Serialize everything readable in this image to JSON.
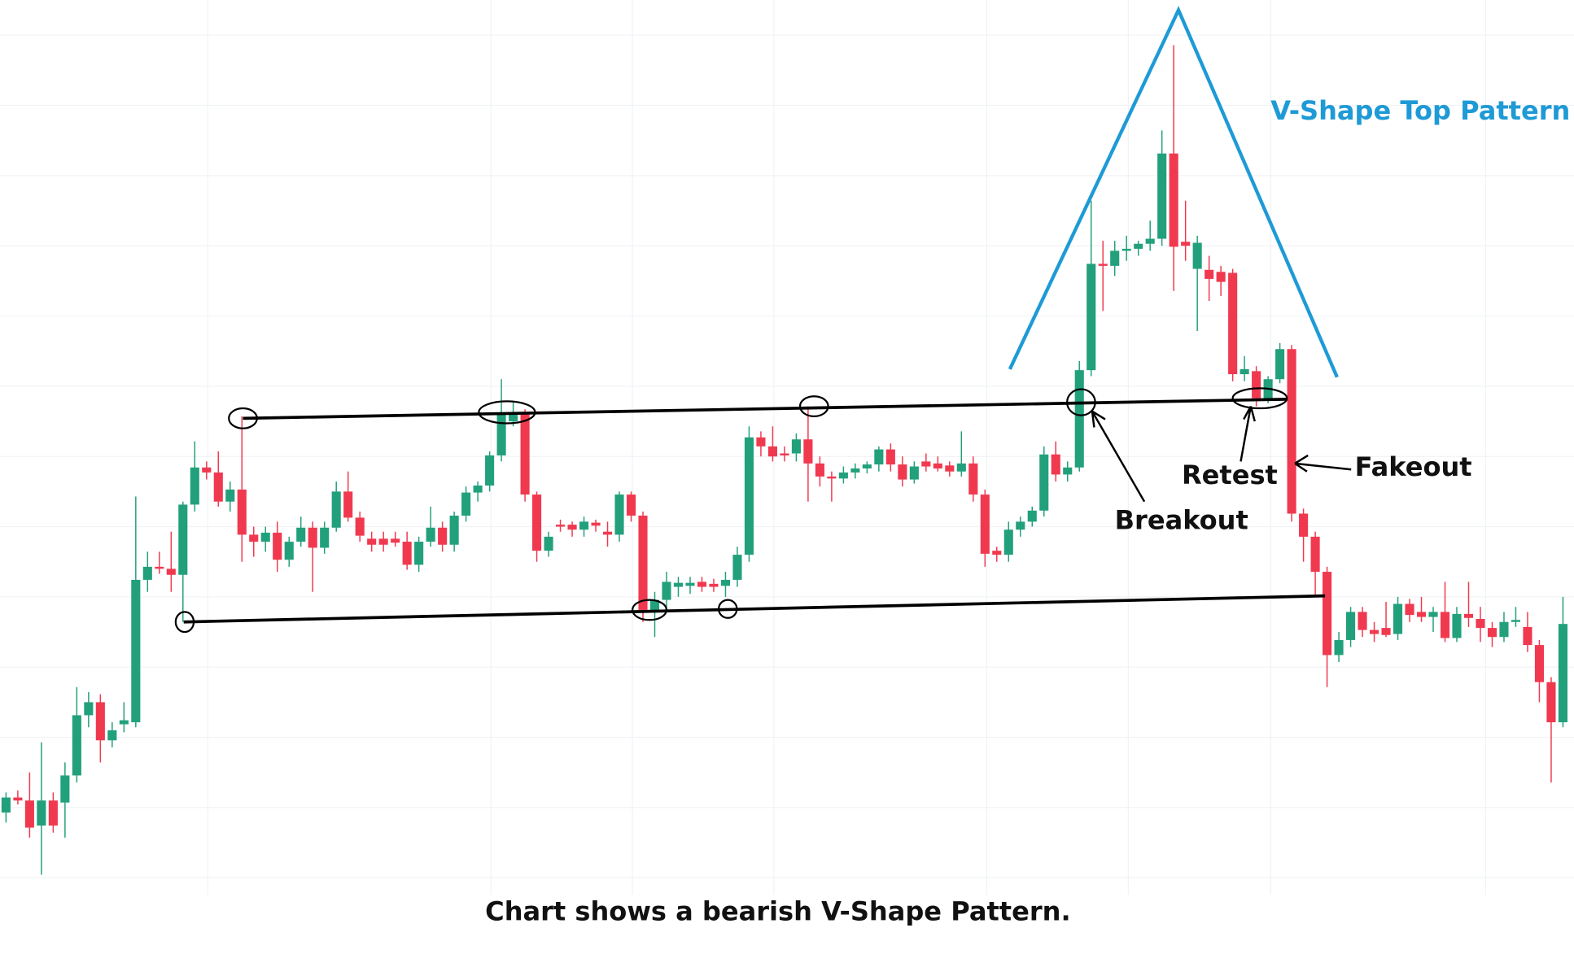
{
  "chart_data": {
    "type": "candlestick",
    "title": "V-Shape Top Pattern",
    "annotations": [
      "Breakout",
      "Retest",
      "Fakeout"
    ],
    "caption": "Chart shows a bearish V-Shape Pattern.",
    "up_color": "#22a07c",
    "down_color": "#f0394f",
    "title_color": "#1e9ad6",
    "ylim": [
      0,
      88
    ],
    "ohlc": [
      [
        7.0,
        9.0,
        6.0,
        8.5
      ],
      [
        8.5,
        9.2,
        7.8,
        8.2
      ],
      [
        8.2,
        11.0,
        4.5,
        5.5
      ],
      [
        5.7,
        14.0,
        0.8,
        8.2
      ],
      [
        8.2,
        9.0,
        5.0,
        5.7
      ],
      [
        8.0,
        12.0,
        4.5,
        10.7
      ],
      [
        10.7,
        19.5,
        10.0,
        16.7
      ],
      [
        16.7,
        19.0,
        15.5,
        18.0
      ],
      [
        18.0,
        18.8,
        12.0,
        14.2
      ],
      [
        14.2,
        16.0,
        13.5,
        15.2
      ],
      [
        15.8,
        18.0,
        15.0,
        16.2
      ],
      [
        16.0,
        38.5,
        15.5,
        30.2
      ],
      [
        30.2,
        33.0,
        29.0,
        31.5
      ],
      [
        31.5,
        33.0,
        30.8,
        31.3
      ],
      [
        31.3,
        35.0,
        29.0,
        30.7
      ],
      [
        30.7,
        38.0,
        26.0,
        37.7
      ],
      [
        37.7,
        44.0,
        37.0,
        41.4
      ],
      [
        41.4,
        42.0,
        40.2,
        40.9
      ],
      [
        40.9,
        43.0,
        37.5,
        38.0
      ],
      [
        38.0,
        40.0,
        37.0,
        39.2
      ],
      [
        39.2,
        46.5,
        32.0,
        34.7
      ],
      [
        34.7,
        35.5,
        32.5,
        34.0
      ],
      [
        34.0,
        35.5,
        33.0,
        34.9
      ],
      [
        34.9,
        36.0,
        31.0,
        32.2
      ],
      [
        32.2,
        34.5,
        31.5,
        34.0
      ],
      [
        34.0,
        36.5,
        33.5,
        35.4
      ],
      [
        35.4,
        36.0,
        29.0,
        33.4
      ],
      [
        33.4,
        36.0,
        32.8,
        35.4
      ],
      [
        35.4,
        40.0,
        35.0,
        39.0
      ],
      [
        39.0,
        41.0,
        36.0,
        36.4
      ],
      [
        36.4,
        37.0,
        34.0,
        34.6
      ],
      [
        34.3,
        35.0,
        33.0,
        33.7
      ],
      [
        34.3,
        35.0,
        33.0,
        33.7
      ],
      [
        34.3,
        35.0,
        33.5,
        33.9
      ],
      [
        34.0,
        35.0,
        31.2,
        31.7
      ],
      [
        31.7,
        34.5,
        31.0,
        34.0
      ],
      [
        34.0,
        37.5,
        33.5,
        35.4
      ],
      [
        35.4,
        36.0,
        33.0,
        33.7
      ],
      [
        33.7,
        37.0,
        33.0,
        36.6
      ],
      [
        36.6,
        39.5,
        36.0,
        38.9
      ],
      [
        38.9,
        40.0,
        38.0,
        39.6
      ],
      [
        39.6,
        43.0,
        39.0,
        42.6
      ],
      [
        42.6,
        50.2,
        42.0,
        46.9
      ],
      [
        46.0,
        48.0,
        45.5,
        46.7
      ],
      [
        46.7,
        47.2,
        38.0,
        38.7
      ],
      [
        38.7,
        39.0,
        32.0,
        33.1
      ],
      [
        33.1,
        35.0,
        32.5,
        34.5
      ],
      [
        35.7,
        36.2,
        35.0,
        35.5
      ],
      [
        35.7,
        36.0,
        34.5,
        35.2
      ],
      [
        35.2,
        36.5,
        34.5,
        36.0
      ],
      [
        35.9,
        36.2,
        35.0,
        35.6
      ],
      [
        35.0,
        36.0,
        33.5,
        34.7
      ],
      [
        34.7,
        39.0,
        34.0,
        38.7
      ],
      [
        38.7,
        39.0,
        36.0,
        36.6
      ],
      [
        36.6,
        37.0,
        26.0,
        27.2
      ],
      [
        27.2,
        29.0,
        24.5,
        28.2
      ],
      [
        28.2,
        31.0,
        27.5,
        30.0
      ],
      [
        29.5,
        30.5,
        28.5,
        29.9
      ],
      [
        29.6,
        30.5,
        28.8,
        29.9
      ],
      [
        30.0,
        30.5,
        29.0,
        29.5
      ],
      [
        29.8,
        30.3,
        29.0,
        29.5
      ],
      [
        29.6,
        31.0,
        28.5,
        30.2
      ],
      [
        30.2,
        33.5,
        29.5,
        32.7
      ],
      [
        32.7,
        45.5,
        32.0,
        44.4
      ],
      [
        44.4,
        45.0,
        42.5,
        43.5
      ],
      [
        43.5,
        45.5,
        42.0,
        42.5
      ],
      [
        42.8,
        43.5,
        42.0,
        42.6
      ],
      [
        42.8,
        44.8,
        42.0,
        44.2
      ],
      [
        44.2,
        47.5,
        38.0,
        41.8
      ],
      [
        41.8,
        42.5,
        39.5,
        40.5
      ],
      [
        40.5,
        41.0,
        38.0,
        40.3
      ],
      [
        40.3,
        41.5,
        39.8,
        40.9
      ],
      [
        40.9,
        41.8,
        40.3,
        41.3
      ],
      [
        41.3,
        42.0,
        40.8,
        41.7
      ],
      [
        41.7,
        43.5,
        41.0,
        43.2
      ],
      [
        43.2,
        43.8,
        41.0,
        41.7
      ],
      [
        41.7,
        42.5,
        39.5,
        40.2
      ],
      [
        40.2,
        42.0,
        39.8,
        41.5
      ],
      [
        42.0,
        42.8,
        41.0,
        41.5
      ],
      [
        41.8,
        42.5,
        41.0,
        41.3
      ],
      [
        41.6,
        42.0,
        40.5,
        41.0
      ],
      [
        41.0,
        45.0,
        40.5,
        41.8
      ],
      [
        41.8,
        42.5,
        38.0,
        38.7
      ],
      [
        38.7,
        39.2,
        31.5,
        32.8
      ],
      [
        33.1,
        33.5,
        32.0,
        32.7
      ],
      [
        32.7,
        36.0,
        32.0,
        35.2
      ],
      [
        35.2,
        36.5,
        34.5,
        36.0
      ],
      [
        36.0,
        37.5,
        35.5,
        37.1
      ],
      [
        37.1,
        43.5,
        36.5,
        42.7
      ],
      [
        42.7,
        44.0,
        40.0,
        40.7
      ],
      [
        40.7,
        42.0,
        40.0,
        41.4
      ],
      [
        41.4,
        52.0,
        41.0,
        51.1
      ],
      [
        51.1,
        68.0,
        50.5,
        61.7
      ],
      [
        61.7,
        64.0,
        57.0,
        61.5
      ],
      [
        61.5,
        64.0,
        60.5,
        63.0
      ],
      [
        63.0,
        64.5,
        62.0,
        63.2
      ],
      [
        63.2,
        64.0,
        62.5,
        63.7
      ],
      [
        63.7,
        66.0,
        63.0,
        64.2
      ],
      [
        64.2,
        75.0,
        63.5,
        72.7
      ],
      [
        72.7,
        83.5,
        59.0,
        63.4
      ],
      [
        63.9,
        68.0,
        62.0,
        63.5
      ],
      [
        61.2,
        64.5,
        55.0,
        63.8
      ],
      [
        61.1,
        62.5,
        58.0,
        60.2
      ],
      [
        60.9,
        61.5,
        58.5,
        59.9
      ],
      [
        60.8,
        61.2,
        50.0,
        50.7
      ],
      [
        50.7,
        52.5,
        50.0,
        51.2
      ],
      [
        51.0,
        51.5,
        47.5,
        48.3
      ],
      [
        48.3,
        50.5,
        47.8,
        50.2
      ],
      [
        50.2,
        53.8,
        49.8,
        53.2
      ],
      [
        53.2,
        53.6,
        36.0,
        36.8
      ],
      [
        36.8,
        37.3,
        32.0,
        34.5
      ],
      [
        34.5,
        35.0,
        28.5,
        31.0
      ],
      [
        31.0,
        31.5,
        19.5,
        22.7
      ],
      [
        22.7,
        25.0,
        22.0,
        24.2
      ],
      [
        24.2,
        27.5,
        23.5,
        27.0
      ],
      [
        27.0,
        27.5,
        24.5,
        25.2
      ],
      [
        25.2,
        26.0,
        24.0,
        24.8
      ],
      [
        25.4,
        28.0,
        24.5,
        24.7
      ],
      [
        24.8,
        28.5,
        24.2,
        27.8
      ],
      [
        27.8,
        28.3,
        26.0,
        26.7
      ],
      [
        27.0,
        28.5,
        26.0,
        26.5
      ],
      [
        26.5,
        27.5,
        25.0,
        27.0
      ],
      [
        27.0,
        30.0,
        24.0,
        24.4
      ],
      [
        24.4,
        27.5,
        24.0,
        26.8
      ],
      [
        26.8,
        30.0,
        25.5,
        26.4
      ],
      [
        26.3,
        27.5,
        24.0,
        25.4
      ],
      [
        25.4,
        26.0,
        23.5,
        24.5
      ],
      [
        24.5,
        27.0,
        24.0,
        26.0
      ],
      [
        26.0,
        27.5,
        25.5,
        26.2
      ],
      [
        25.5,
        27.0,
        23.0,
        23.7
      ],
      [
        23.7,
        24.2,
        18.0,
        20.0
      ],
      [
        20.0,
        20.5,
        10.0,
        16.0
      ],
      [
        16.0,
        28.5,
        15.5,
        25.8
      ]
    ]
  }
}
